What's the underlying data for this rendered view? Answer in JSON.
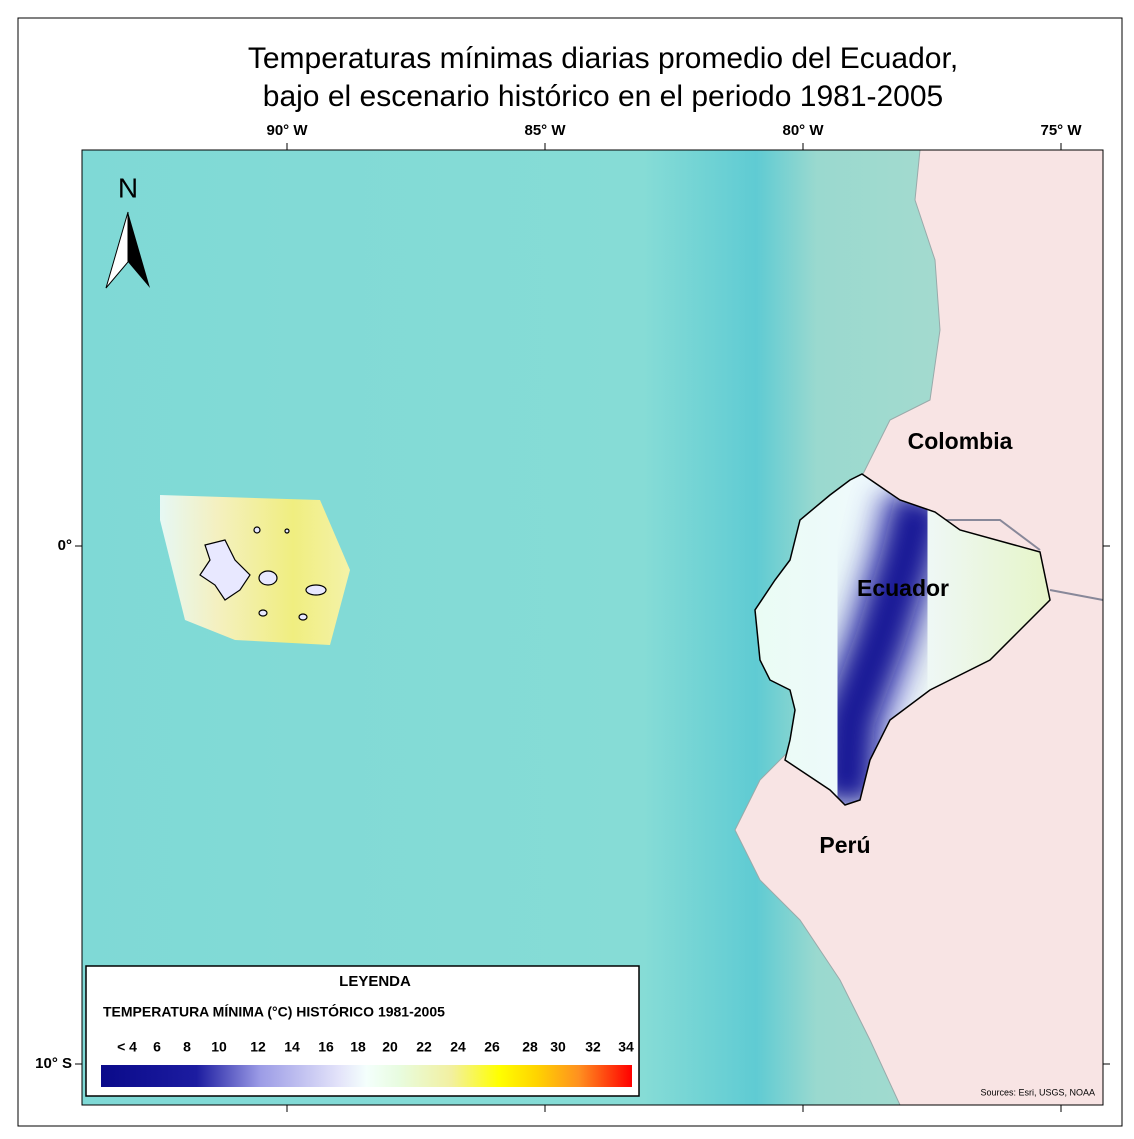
{
  "title": [
    "Temperaturas mínimas diarias promedio del Ecuador,",
    "bajo el escenario histórico en el periodo 1981-2005"
  ],
  "longitude_labels": [
    "90° W",
    "85° W",
    "80° W",
    "75° W"
  ],
  "latitude_labels": [
    "0°",
    "10° S"
  ],
  "north_label": "N",
  "country_labels": [
    "Colombia",
    "Ecuador",
    "Perú"
  ],
  "legend": {
    "heading": "LEYENDA",
    "title": "TEMPERATURA MÍNIMA (°C) HISTÓRICO 1981-2005",
    "scale_labels": [
      "< 4",
      "6",
      "8",
      "10",
      "12",
      "14",
      "16",
      "18",
      "20",
      "22",
      "24",
      "26",
      "28",
      "30",
      "32",
      "34"
    ]
  },
  "sources": "Sources: Esri, USGS, NOAA"
}
